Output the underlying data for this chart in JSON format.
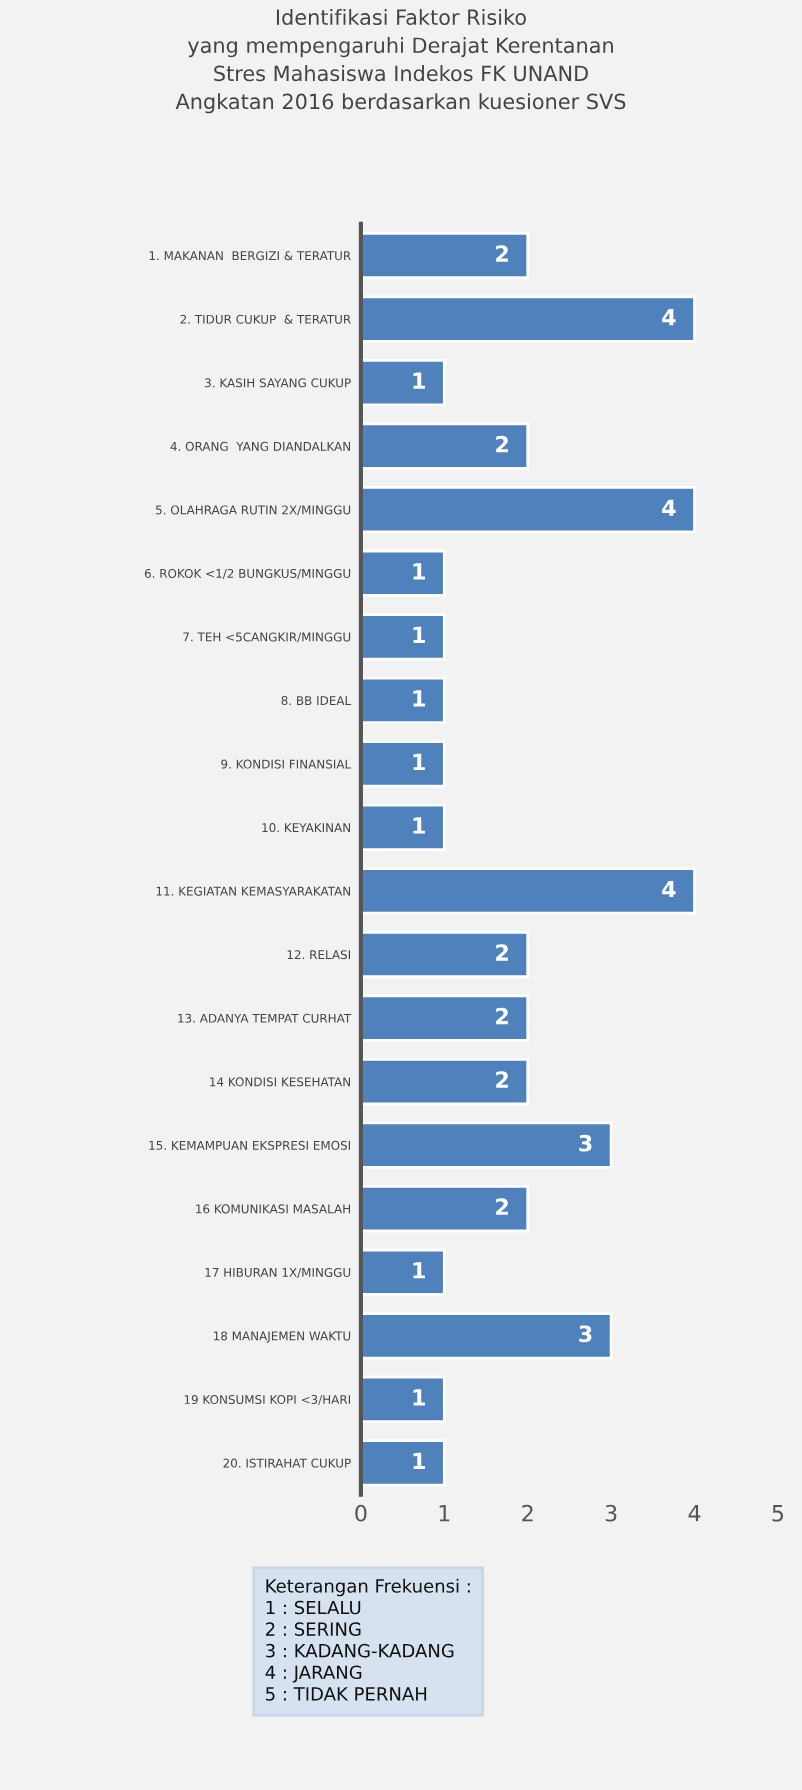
{
  "chart_data": {
    "type": "bar",
    "orientation": "horizontal",
    "title": "Identifikasi Faktor Risiko\nyang mempengaruhi Derajat Kerentanan\nStres Mahasiswa Indekos FK UNAND\nAngkatan 2016 berdasarkan kuesioner SVS",
    "categories": [
      "1. MAKANAN  BERGIZI & TERATUR",
      "2. TIDUR CUKUP  & TERATUR",
      "3. KASIH SAYANG CUKUP",
      "4. ORANG  YANG DIANDALKAN",
      "5. OLAHRAGA RUTIN 2X/MINGGU",
      "6. ROKOK <1/2 BUNGKUS/MINGGU",
      "7. TEH <5CANGKIR/MINGGU",
      "8. BB IDEAL",
      "9. KONDISI FINANSIAL",
      "10. KEYAKINAN",
      "11. KEGIATAN KEMASYARAKATAN",
      "12. RELASI",
      "13. ADANYA TEMPAT CURHAT",
      "14 KONDISI KESEHATAN",
      "15. KEMAMPUAN EKSPRESI EMOSI",
      "16 KOMUNIKASI MASALAH",
      "17 HIBURAN 1X/MINGGU",
      "18 MANAJEMEN WAKTU",
      "19 KONSUMSI KOPI <3/HARI",
      "20. ISTIRAHAT CUKUP"
    ],
    "values": [
      2,
      4,
      1,
      2,
      4,
      1,
      1,
      1,
      1,
      1,
      4,
      2,
      2,
      2,
      3,
      2,
      1,
      3,
      1,
      1
    ],
    "color": "#4f81bd",
    "data_labels": true,
    "xlim": [
      0,
      5
    ],
    "xticks": [
      0,
      1,
      2,
      3,
      4,
      5
    ],
    "grid": false,
    "annotations": [
      "Keterangan Frekuensi :\n1 : SELALU\n2 : SERING\n3 : KADANG-KADANG\n4 : JARANG\n5 : TIDAK PERNAH"
    ]
  }
}
